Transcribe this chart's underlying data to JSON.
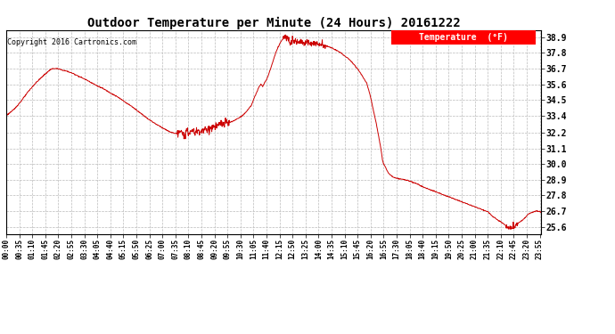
{
  "title": "Outdoor Temperature per Minute (24 Hours) 20161222",
  "copyright": "Copyright 2016 Cartronics.com",
  "legend_label": "Temperature  (°F)",
  "line_color": "#cc0000",
  "background_color": "#ffffff",
  "grid_color": "#bbbbbb",
  "yticks": [
    25.6,
    26.7,
    27.8,
    28.9,
    30.0,
    31.1,
    32.2,
    33.4,
    34.5,
    35.6,
    36.7,
    37.8,
    38.9
  ],
  "xtick_labels": [
    "00:00",
    "00:35",
    "01:10",
    "01:45",
    "02:20",
    "02:55",
    "03:30",
    "04:05",
    "04:40",
    "05:15",
    "05:50",
    "06:25",
    "07:00",
    "07:35",
    "08:10",
    "08:45",
    "09:20",
    "09:55",
    "10:30",
    "11:05",
    "11:40",
    "12:15",
    "12:50",
    "13:25",
    "14:00",
    "14:35",
    "15:10",
    "15:45",
    "16:20",
    "16:55",
    "17:30",
    "18:05",
    "18:40",
    "19:15",
    "19:50",
    "20:25",
    "21:00",
    "21:35",
    "22:10",
    "22:45",
    "23:20",
    "23:55"
  ],
  "ylim": [
    25.1,
    39.4
  ],
  "xlim": [
    0,
    1439
  ],
  "control_points": [
    [
      0,
      33.4
    ],
    [
      20,
      33.8
    ],
    [
      40,
      34.4
    ],
    [
      60,
      35.1
    ],
    [
      80,
      35.7
    ],
    [
      100,
      36.2
    ],
    [
      120,
      36.65
    ],
    [
      130,
      36.7
    ],
    [
      140,
      36.68
    ],
    [
      150,
      36.6
    ],
    [
      165,
      36.5
    ],
    [
      180,
      36.35
    ],
    [
      200,
      36.1
    ],
    [
      220,
      35.85
    ],
    [
      240,
      35.55
    ],
    [
      260,
      35.3
    ],
    [
      280,
      35.0
    ],
    [
      300,
      34.7
    ],
    [
      320,
      34.35
    ],
    [
      340,
      34.0
    ],
    [
      360,
      33.6
    ],
    [
      380,
      33.2
    ],
    [
      400,
      32.85
    ],
    [
      420,
      32.55
    ],
    [
      440,
      32.25
    ],
    [
      455,
      32.15
    ],
    [
      460,
      32.12
    ],
    [
      465,
      32.2
    ],
    [
      470,
      32.15
    ],
    [
      475,
      32.1
    ],
    [
      480,
      32.15
    ],
    [
      490,
      32.2
    ],
    [
      500,
      32.3
    ],
    [
      510,
      32.25
    ],
    [
      515,
      32.3
    ],
    [
      520,
      32.35
    ],
    [
      525,
      32.3
    ],
    [
      530,
      32.4
    ],
    [
      535,
      32.35
    ],
    [
      540,
      32.4
    ],
    [
      545,
      32.45
    ],
    [
      550,
      32.5
    ],
    [
      555,
      32.55
    ],
    [
      560,
      32.6
    ],
    [
      570,
      32.7
    ],
    [
      580,
      32.8
    ],
    [
      590,
      32.85
    ],
    [
      600,
      32.9
    ],
    [
      610,
      33.0
    ],
    [
      620,
      33.15
    ],
    [
      630,
      33.3
    ],
    [
      640,
      33.5
    ],
    [
      650,
      33.8
    ],
    [
      660,
      34.15
    ],
    [
      665,
      34.5
    ],
    [
      670,
      34.8
    ],
    [
      675,
      35.1
    ],
    [
      680,
      35.4
    ],
    [
      685,
      35.6
    ],
    [
      690,
      35.45
    ],
    [
      695,
      35.7
    ],
    [
      700,
      35.9
    ],
    [
      705,
      36.2
    ],
    [
      710,
      36.6
    ],
    [
      715,
      37.0
    ],
    [
      720,
      37.4
    ],
    [
      725,
      37.8
    ],
    [
      730,
      38.1
    ],
    [
      735,
      38.4
    ],
    [
      740,
      38.65
    ],
    [
      745,
      38.8
    ],
    [
      748,
      38.88
    ],
    [
      750,
      38.9
    ],
    [
      752,
      38.88
    ],
    [
      755,
      38.85
    ],
    [
      758,
      38.82
    ],
    [
      760,
      38.75
    ],
    [
      762,
      38.7
    ],
    [
      765,
      38.65
    ],
    [
      770,
      38.7
    ],
    [
      775,
      38.68
    ],
    [
      780,
      38.65
    ],
    [
      785,
      38.6
    ],
    [
      790,
      38.62
    ],
    [
      795,
      38.58
    ],
    [
      800,
      38.55
    ],
    [
      805,
      38.5
    ],
    [
      810,
      38.52
    ],
    [
      815,
      38.5
    ],
    [
      820,
      38.48
    ],
    [
      825,
      38.5
    ],
    [
      830,
      38.45
    ],
    [
      840,
      38.4
    ],
    [
      850,
      38.38
    ],
    [
      860,
      38.3
    ],
    [
      870,
      38.2
    ],
    [
      880,
      38.1
    ],
    [
      890,
      37.95
    ],
    [
      900,
      37.8
    ],
    [
      910,
      37.6
    ],
    [
      920,
      37.4
    ],
    [
      930,
      37.15
    ],
    [
      940,
      36.85
    ],
    [
      950,
      36.5
    ],
    [
      960,
      36.1
    ],
    [
      970,
      35.65
    ],
    [
      975,
      35.2
    ],
    [
      980,
      34.7
    ],
    [
      985,
      34.1
    ],
    [
      990,
      33.5
    ],
    [
      995,
      32.9
    ],
    [
      1000,
      32.2
    ],
    [
      1005,
      31.5
    ],
    [
      1008,
      31.1
    ],
    [
      1010,
      30.7
    ],
    [
      1012,
      30.3
    ],
    [
      1015,
      30.0
    ],
    [
      1020,
      29.8
    ],
    [
      1025,
      29.5
    ],
    [
      1030,
      29.3
    ],
    [
      1040,
      29.1
    ],
    [
      1050,
      29.0
    ],
    [
      1060,
      28.95
    ],
    [
      1070,
      28.9
    ],
    [
      1080,
      28.85
    ],
    [
      1090,
      28.75
    ],
    [
      1100,
      28.65
    ],
    [
      1110,
      28.55
    ],
    [
      1120,
      28.4
    ],
    [
      1130,
      28.3
    ],
    [
      1140,
      28.2
    ],
    [
      1150,
      28.1
    ],
    [
      1160,
      28.0
    ],
    [
      1170,
      27.9
    ],
    [
      1180,
      27.8
    ],
    [
      1190,
      27.7
    ],
    [
      1200,
      27.6
    ],
    [
      1210,
      27.5
    ],
    [
      1220,
      27.4
    ],
    [
      1230,
      27.3
    ],
    [
      1240,
      27.2
    ],
    [
      1250,
      27.1
    ],
    [
      1260,
      27.0
    ],
    [
      1270,
      26.9
    ],
    [
      1280,
      26.8
    ],
    [
      1290,
      26.7
    ],
    [
      1295,
      26.65
    ],
    [
      1300,
      26.55
    ],
    [
      1305,
      26.4
    ],
    [
      1310,
      26.3
    ],
    [
      1315,
      26.2
    ],
    [
      1320,
      26.1
    ],
    [
      1325,
      26.0
    ],
    [
      1330,
      25.95
    ],
    [
      1335,
      25.85
    ],
    [
      1340,
      25.75
    ],
    [
      1345,
      25.65
    ],
    [
      1350,
      25.6
    ],
    [
      1355,
      25.58
    ],
    [
      1360,
      25.57
    ],
    [
      1365,
      25.6
    ],
    [
      1368,
      25.62
    ],
    [
      1370,
      25.65
    ],
    [
      1372,
      25.7
    ],
    [
      1375,
      25.8
    ],
    [
      1380,
      25.9
    ],
    [
      1385,
      26.0
    ],
    [
      1390,
      26.1
    ],
    [
      1395,
      26.2
    ],
    [
      1400,
      26.35
    ],
    [
      1405,
      26.5
    ],
    [
      1410,
      26.55
    ],
    [
      1415,
      26.6
    ],
    [
      1420,
      26.65
    ],
    [
      1425,
      26.7
    ],
    [
      1430,
      26.68
    ],
    [
      1435,
      26.65
    ],
    [
      1439,
      26.6
    ]
  ]
}
